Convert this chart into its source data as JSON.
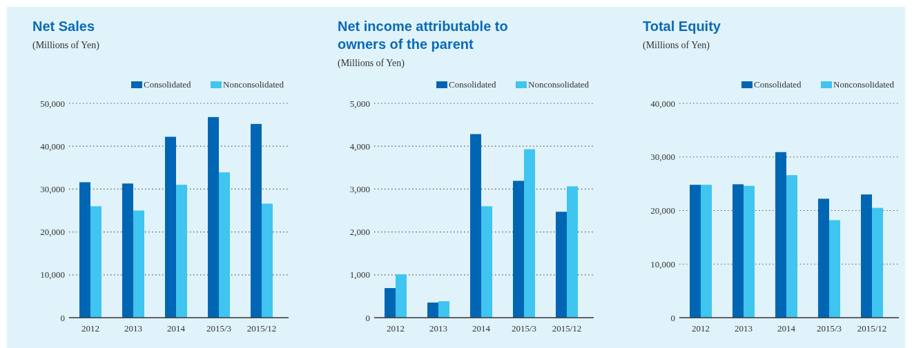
{
  "chart_data": [
    {
      "type": "bar",
      "title": "Net Sales",
      "subtitle": "(Millions of Yen)",
      "categories": [
        "2012",
        "2013",
        "2014",
        "2015/3",
        "2015/12"
      ],
      "series": [
        {
          "name": "Consolidated",
          "color": "#0066b3",
          "values": [
            31600,
            31300,
            42200,
            46800,
            45200
          ]
        },
        {
          "name": "Nonconsolidated",
          "color": "#40c4f0",
          "values": [
            26000,
            25000,
            31000,
            33900,
            26600
          ]
        }
      ],
      "ylim": [
        0,
        50000
      ],
      "yticks": [
        {
          "value": 0,
          "label": "0"
        },
        {
          "value": 10000,
          "label": "10,000"
        },
        {
          "value": 20000,
          "label": "20,000"
        },
        {
          "value": 30000,
          "label": "30,000"
        },
        {
          "value": 40000,
          "label": "40,000"
        },
        {
          "value": 50000,
          "label": "50,000"
        }
      ],
      "grid": "y",
      "legend": "top right"
    },
    {
      "type": "bar",
      "title": "Net income attributable to owners of the parent",
      "subtitle": "(Millions of Yen)",
      "categories": [
        "2012",
        "2013",
        "2014",
        "2015/3",
        "2015/12"
      ],
      "series": [
        {
          "name": "Consolidated",
          "color": "#0066b3",
          "values": [
            690,
            353,
            4283,
            3193,
            2471
          ]
        },
        {
          "name": "Nonconsolidated",
          "color": "#40c4f0",
          "values": [
            1010,
            385,
            2599,
            3930,
            3064
          ]
        }
      ],
      "ylim": [
        0,
        5000
      ],
      "yticks": [
        {
          "value": 0,
          "label": "0"
        },
        {
          "value": 1000,
          "label": "1,000"
        },
        {
          "value": 2000,
          "label": "2,000"
        },
        {
          "value": 3000,
          "label": "3,000"
        },
        {
          "value": 4000,
          "label": "4,000"
        },
        {
          "value": 5000,
          "label": "5,000"
        }
      ],
      "grid": "y",
      "legend": "top right"
    },
    {
      "type": "bar",
      "title": "Total Equity",
      "subtitle": "(Millions of Yen)",
      "categories": [
        "2012",
        "2013",
        "2014",
        "2015/3",
        "2015/12"
      ],
      "series": [
        {
          "name": "Consolidated",
          "color": "#0066b3",
          "values": [
            24800,
            24900,
            30900,
            22200,
            23000
          ]
        },
        {
          "name": "Nonconsolidated",
          "color": "#40c4f0",
          "values": [
            24800,
            24600,
            26600,
            18200,
            20500
          ]
        }
      ],
      "ylim": [
        0,
        40000
      ],
      "yticks": [
        {
          "value": 0,
          "label": "0"
        },
        {
          "value": 10000,
          "label": "10,000"
        },
        {
          "value": 20000,
          "label": "20,000"
        },
        {
          "value": 30000,
          "label": "30,000"
        },
        {
          "value": 40000,
          "label": "40,000"
        }
      ],
      "grid": "y",
      "legend": "top right"
    }
  ]
}
